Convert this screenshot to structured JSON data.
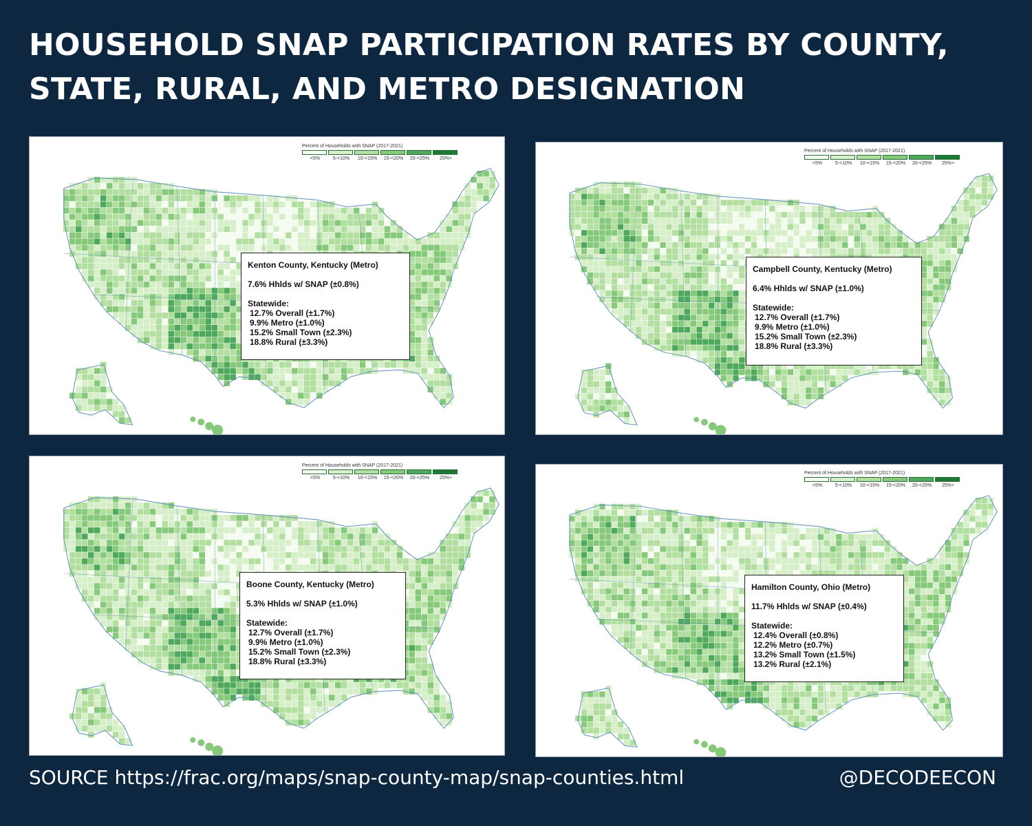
{
  "title": {
    "line1": "HOUSEHOLD SNAP PARTICIPATION RATES BY COUNTY,",
    "line2": "STATE, RURAL, AND METRO DESIGNATION"
  },
  "legend": {
    "title": "Percent of Households with SNAP (2017-2021)",
    "bins": [
      "<5%",
      "5-<10%",
      "10-<15%",
      "15-<20%",
      "20-<25%",
      "25%+"
    ],
    "colors": [
      "#f4fbef",
      "#d6efc8",
      "#b2dfa0",
      "#86c97a",
      "#4ea95c",
      "#1d7a34"
    ]
  },
  "panels": [
    {
      "county": "Kenton County, Kentucky (Metro)",
      "hhlds": "7.6% Hhlds w/ SNAP (±0.8%)",
      "statewide_label": "Statewide:",
      "stats": [
        "12.7% Overall (±1.7%)",
        "9.9% Metro (±1.0%)",
        "15.2% Small Town (±2.3%)",
        "18.8% Rural (±3.3%)"
      ]
    },
    {
      "county": "Campbell County, Kentucky (Metro)",
      "hhlds": "6.4% Hhlds w/ SNAP (±1.0%)",
      "statewide_label": "Statewide:",
      "stats": [
        "12.7% Overall (±1.7%)",
        "9.9% Metro (±1.0%)",
        "15.2% Small Town (±2.3%)",
        "18.8% Rural (±3.3%)"
      ]
    },
    {
      "county": "Boone County, Kentucky (Metro)",
      "hhlds": "5.3% Hhlds w/ SNAP (±1.0%)",
      "statewide_label": "Statewide:",
      "stats": [
        "12.7% Overall (±1.7%)",
        "9.9% Metro (±1.0%)",
        "15.2% Small Town (±2.3%)",
        "18.8% Rural (±3.3%)"
      ]
    },
    {
      "county": "Hamilton County, Ohio (Metro)",
      "hhlds": "11.7% Hhlds w/ SNAP (±0.4%)",
      "statewide_label": "Statewide:",
      "stats": [
        "12.4% Overall (±0.8%)",
        "12.2% Metro (±0.7%)",
        "13.2% Small Town (±1.5%)",
        "13.2% Rural (±2.1%)"
      ]
    }
  ],
  "footer": {
    "source": "SOURCE https://frac.org/maps/snap-county-map/snap-counties.html",
    "handle": "@DECODEECON"
  },
  "colors": {
    "background": "#0d2740",
    "map_border": "#5b8fb8"
  }
}
